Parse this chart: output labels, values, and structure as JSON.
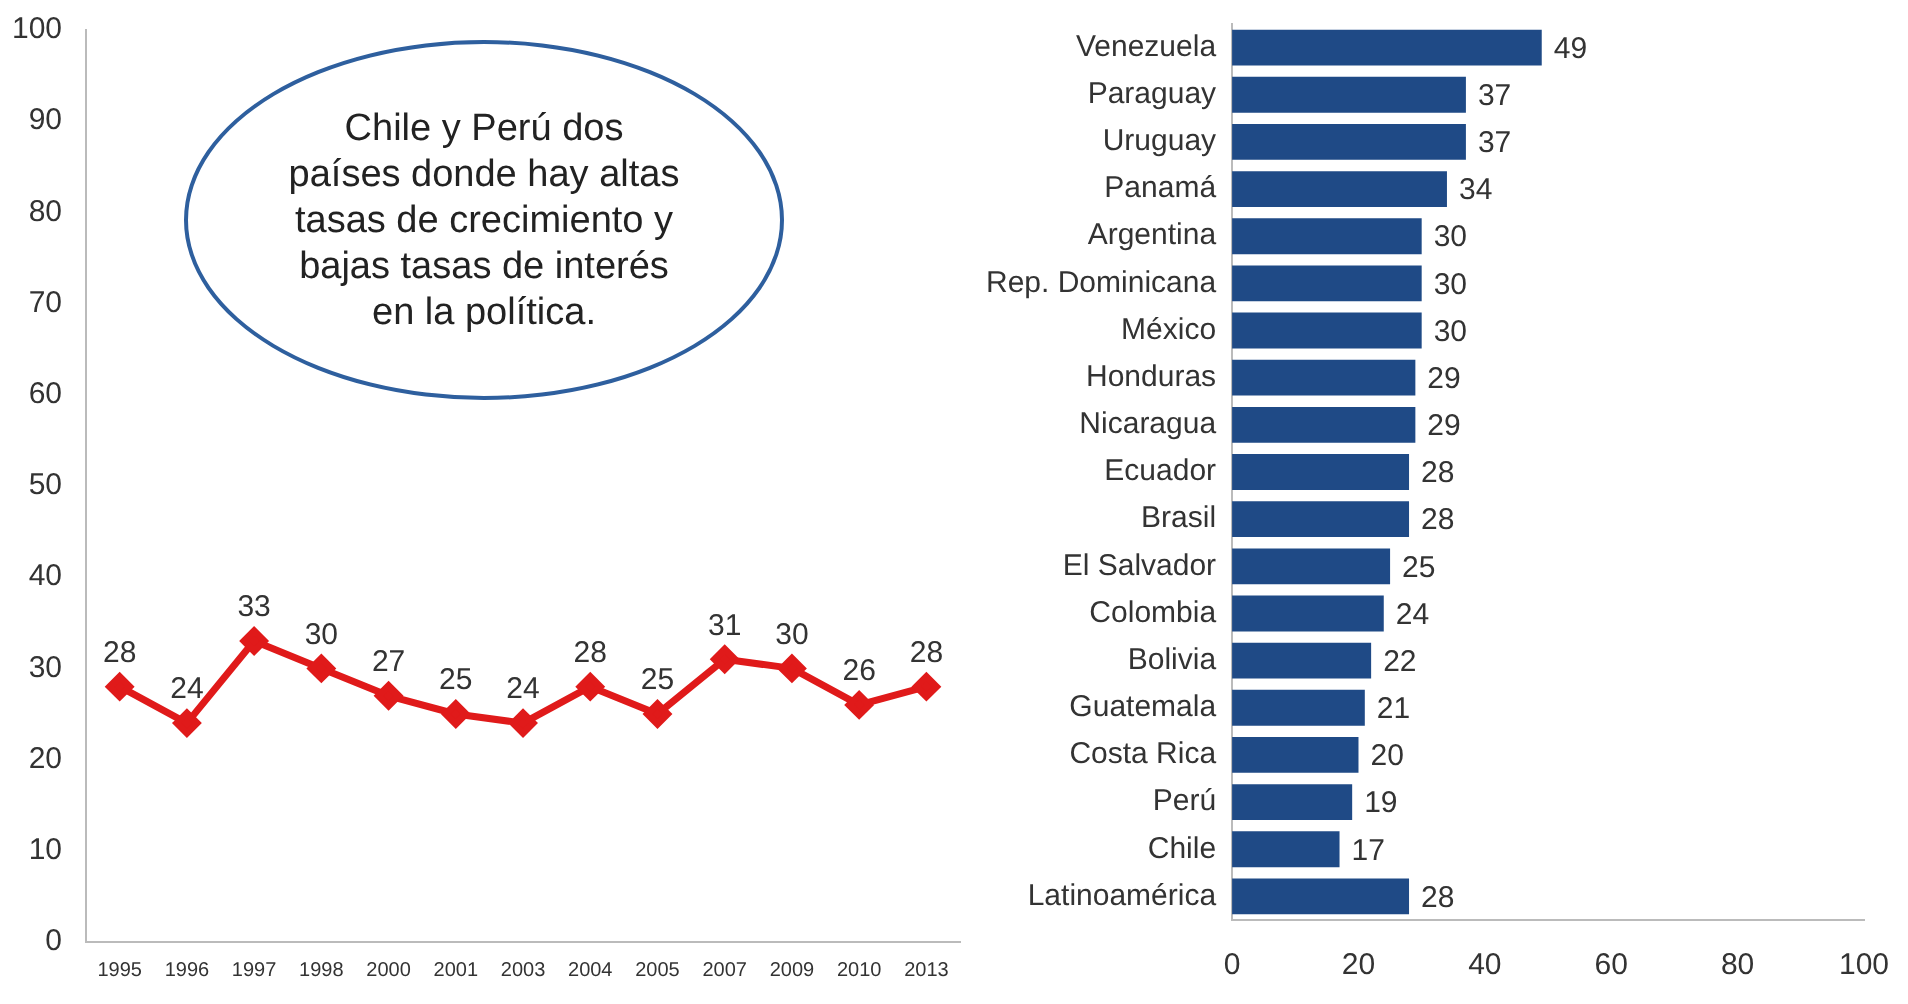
{
  "chart_data": [
    {
      "type": "line",
      "categories": [
        "1995",
        "1996",
        "1997",
        "1998",
        "2000",
        "2001",
        "2003",
        "2004",
        "2005",
        "2007",
        "2009",
        "2010",
        "2013"
      ],
      "series": [
        {
          "color": "#e01a1a",
          "values": [
            28,
            24,
            33,
            30,
            27,
            25,
            24,
            28,
            25,
            31,
            30,
            26,
            28
          ]
        }
      ],
      "ylim": [
        0,
        100
      ],
      "yticks": [
        0,
        10,
        20,
        30,
        40,
        50,
        60,
        70,
        80,
        90,
        100
      ],
      "grid": false,
      "legend": false,
      "marker": "diamond",
      "line_style": "solid",
      "data_labels": true,
      "annotations": [
        "Chile y Perú dos países donde  hay altas tasas de crecimiento y bajas tasas de interés en la política."
      ]
    },
    {
      "type": "bar",
      "orientation": "horizontal",
      "categories": [
        "Venezuela",
        "Paraguay",
        "Uruguay",
        "Panamá",
        "Argentina",
        "Rep. Dominicana",
        "México",
        "Honduras",
        "Nicaragua",
        "Ecuador",
        "Brasil",
        "El Salvador",
        "Colombia",
        "Bolivia",
        "Guatemala",
        "Costa Rica",
        "Perú",
        "Chile",
        "Latinoamérica"
      ],
      "series": [
        {
          "color": "#1f4a86",
          "values": [
            49,
            37,
            37,
            34,
            30,
            30,
            30,
            29,
            29,
            28,
            28,
            25,
            24,
            22,
            21,
            20,
            19,
            17,
            28
          ]
        }
      ],
      "xlim": [
        0,
        100
      ],
      "xticks": [
        0,
        20,
        40,
        60,
        80,
        100
      ],
      "grid": false,
      "legend": false,
      "data_labels": true
    }
  ]
}
